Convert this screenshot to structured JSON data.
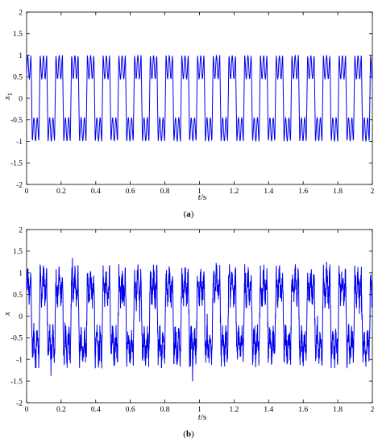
{
  "chart_data": [
    {
      "type": "line",
      "subfigure_label": "a",
      "xlabel_var": "t",
      "xlabel_unit": "/s",
      "ylabel_var": "x",
      "ylabel_sub": "1",
      "xlim": [
        0,
        2
      ],
      "ylim": [
        -2,
        2
      ],
      "xticks": [
        "0",
        "0.2",
        "0.4",
        "0.6",
        "0.8",
        "1",
        "1.2",
        "1.4",
        "1.6",
        "1.8",
        "2"
      ],
      "yticks": [
        "2",
        "1.5",
        "1",
        "0.5",
        "0",
        "-0.5",
        "-1",
        "-1.5",
        "-2"
      ],
      "grid": false,
      "series_color": "#0000ee",
      "signal": {
        "description": "periodic square-like oscillation with double-hump plateaus",
        "period_s": 0.091,
        "high_plateau_range": [
          0.45,
          1.0
        ],
        "low_plateau_range": [
          -1.0,
          -0.45
        ],
        "peak_value": 1.0,
        "trough_value": -1.0
      }
    },
    {
      "type": "line",
      "subfigure_label": "b",
      "xlabel_var": "t",
      "xlabel_unit": "/s",
      "ylabel_var": "x",
      "ylabel_sub": "",
      "xlim": [
        0,
        2
      ],
      "ylim": [
        -2,
        2
      ],
      "xticks": [
        "0",
        "0.2",
        "0.4",
        "0.6",
        "0.8",
        "1",
        "1.2",
        "1.4",
        "1.6",
        "1.8",
        "2"
      ],
      "yticks": [
        "2",
        "1.5",
        "1",
        "0.5",
        "0",
        "-0.5",
        "-1",
        "-1.5",
        "-2"
      ],
      "grid": false,
      "series_color": "#0000ee",
      "signal": {
        "description": "noisy periodic oscillation",
        "period_s": 0.091,
        "peak_value": 1.45,
        "trough_value": -1.55,
        "typical_range": [
          -1.3,
          1.35
        ]
      }
    }
  ]
}
